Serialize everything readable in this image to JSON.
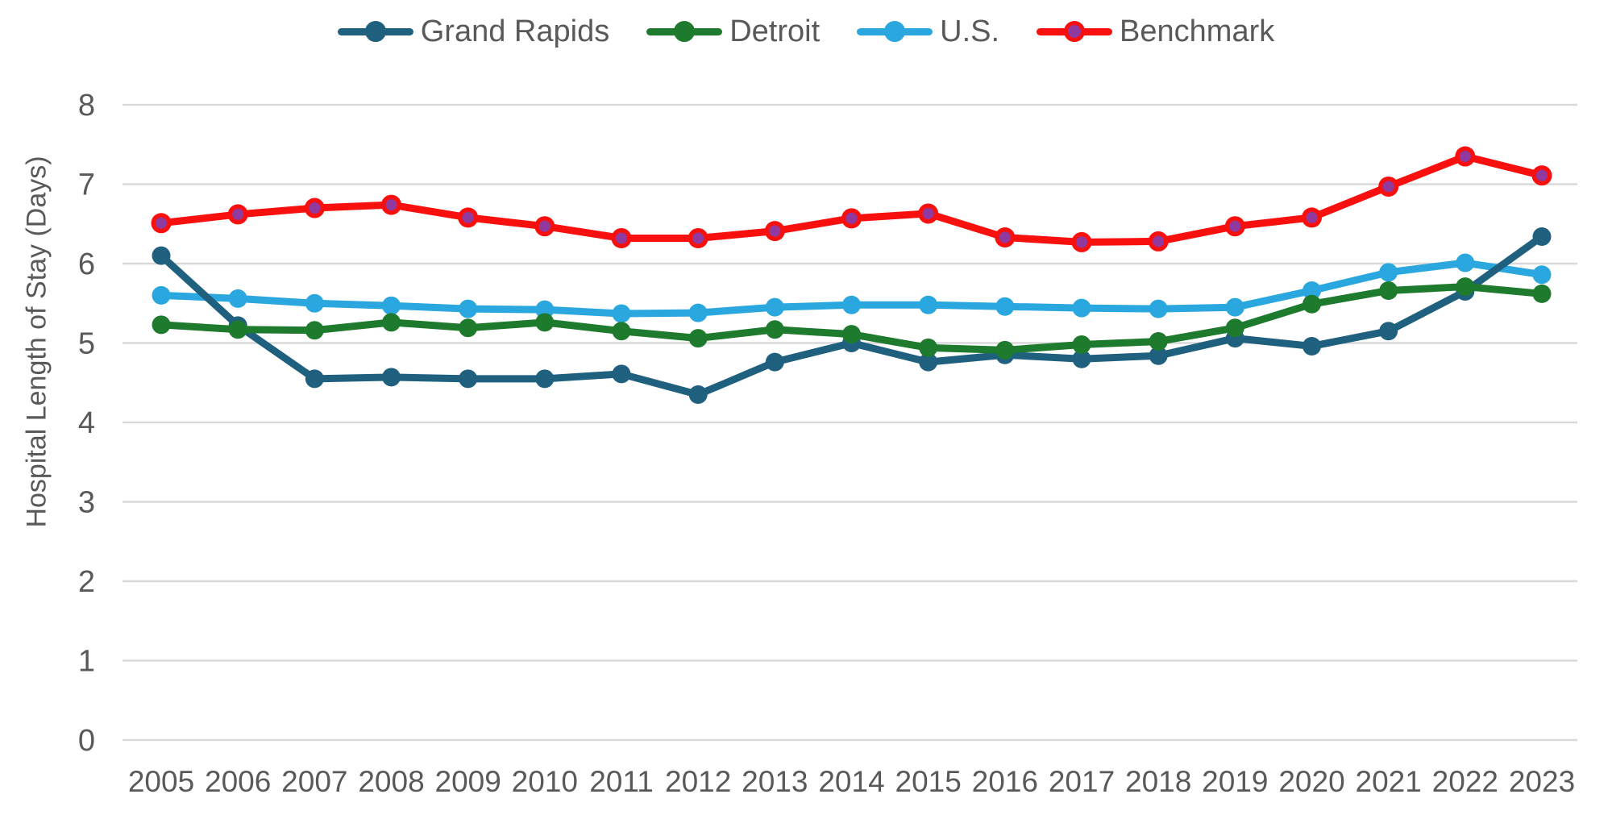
{
  "colors": {
    "background": "#FFFFFF",
    "gridline": "#D9D9D9",
    "axis_text": "#595959",
    "legend_text": "#595959"
  },
  "chart_data": {
    "type": "line",
    "title": "",
    "xlabel": "",
    "ylabel": "Hospital Length of Stay (Days)",
    "grid": true,
    "legend_position": "top",
    "y_axis": {
      "min": 0,
      "max": 8,
      "step": 1
    },
    "categories": [
      "2005",
      "2006",
      "2007",
      "2008",
      "2009",
      "2010",
      "2011",
      "2012",
      "2013",
      "2014",
      "2015",
      "2016",
      "2017",
      "2018",
      "2019",
      "2020",
      "2021",
      "2022",
      "2023"
    ],
    "series": [
      {
        "name": "Grand Rapids",
        "color": "#20607F",
        "z": 2,
        "values": [
          6.1,
          5.22,
          4.55,
          4.57,
          4.55,
          4.55,
          4.61,
          4.35,
          4.76,
          5.0,
          4.76,
          4.85,
          4.8,
          4.84,
          5.06,
          4.96,
          5.15,
          5.65,
          6.34
        ]
      },
      {
        "name": "Detroit",
        "color": "#1E7A2D",
        "z": 3,
        "values": [
          5.23,
          5.17,
          5.16,
          5.26,
          5.19,
          5.26,
          5.15,
          5.06,
          5.17,
          5.11,
          4.94,
          4.91,
          4.98,
          5.02,
          5.19,
          5.49,
          5.66,
          5.71,
          5.62
        ]
      },
      {
        "name": "U.S.",
        "color": "#2AA7DE",
        "z": 1,
        "values": [
          5.6,
          5.56,
          5.5,
          5.47,
          5.43,
          5.42,
          5.37,
          5.38,
          5.45,
          5.48,
          5.48,
          5.46,
          5.44,
          5.43,
          5.45,
          5.66,
          5.89,
          6.01,
          5.86
        ]
      },
      {
        "name": "Benchmark",
        "color": "#F8100E",
        "marker_fill": "#90399F",
        "z": 4,
        "values": [
          6.51,
          6.62,
          6.7,
          6.74,
          6.58,
          6.47,
          6.32,
          6.32,
          6.41,
          6.57,
          6.63,
          6.33,
          6.27,
          6.28,
          6.47,
          6.58,
          6.97,
          7.35,
          7.11
        ]
      }
    ]
  }
}
